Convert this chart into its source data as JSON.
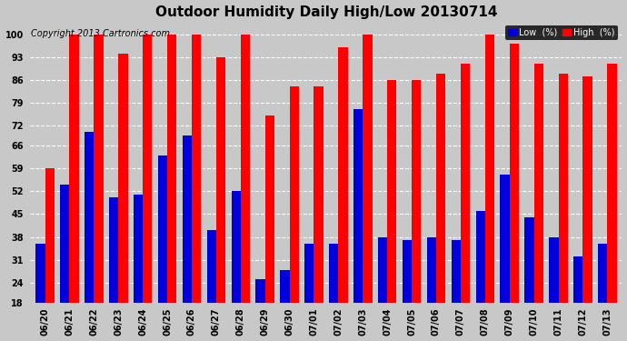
{
  "title": "Outdoor Humidity Daily High/Low 20130714",
  "copyright": "Copyright 2013 Cartronics.com",
  "dates": [
    "06/20",
    "06/21",
    "06/22",
    "06/23",
    "06/24",
    "06/25",
    "06/26",
    "06/27",
    "06/28",
    "06/29",
    "06/30",
    "07/01",
    "07/02",
    "07/03",
    "07/04",
    "07/05",
    "07/06",
    "07/07",
    "07/08",
    "07/09",
    "07/10",
    "07/11",
    "07/12",
    "07/13"
  ],
  "high": [
    59,
    100,
    100,
    94,
    100,
    100,
    100,
    93,
    100,
    75,
    84,
    84,
    96,
    100,
    86,
    86,
    88,
    91,
    100,
    97,
    91,
    88,
    87,
    91
  ],
  "low": [
    36,
    54,
    70,
    50,
    51,
    63,
    69,
    40,
    52,
    25,
    28,
    36,
    36,
    77,
    38,
    37,
    38,
    37,
    46,
    57,
    44,
    38,
    32,
    36
  ],
  "bg_color": "#c8c8c8",
  "high_color": "#ff0000",
  "low_color": "#0000dd",
  "grid_color": "white",
  "yticks": [
    18,
    24,
    31,
    38,
    45,
    52,
    59,
    66,
    72,
    79,
    86,
    93,
    100
  ],
  "ylim": [
    18,
    104
  ],
  "bar_width": 0.38,
  "title_fontsize": 11,
  "copyright_fontsize": 7,
  "tick_fontsize": 7,
  "legend_low_label": "Low  (%)",
  "legend_high_label": "High  (%)"
}
